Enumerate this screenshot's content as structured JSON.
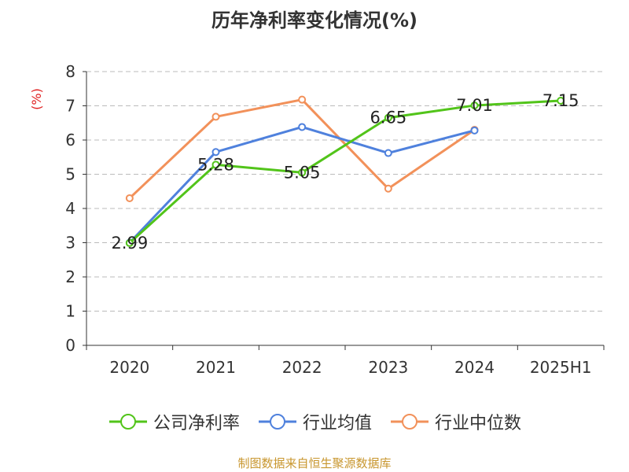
{
  "chart_data": {
    "type": "line",
    "title": "历年净利率变化情况(%)",
    "ylabel": "(%)",
    "xlabel": "",
    "categories": [
      "2020",
      "2021",
      "2022",
      "2023",
      "2024",
      "2025H1"
    ],
    "ylim": [
      0,
      8
    ],
    "yticks": [
      0,
      1,
      2,
      3,
      4,
      5,
      6,
      7,
      8
    ],
    "grid": true,
    "legend_position": "bottom",
    "series": [
      {
        "name": "公司净利率",
        "color": "#52c41a",
        "values": [
          2.99,
          5.28,
          5.05,
          6.65,
          7.01,
          7.15
        ],
        "labels": [
          "2.99",
          "5.28",
          "5.05",
          "6.65",
          "7.01",
          "7.15"
        ]
      },
      {
        "name": "行业均值",
        "color": "#4f81dd",
        "values": [
          3.0,
          5.65,
          6.38,
          5.62,
          6.28,
          null
        ]
      },
      {
        "name": "行业中位数",
        "color": "#f2915a",
        "values": [
          4.3,
          6.68,
          7.18,
          4.58,
          6.3,
          null
        ]
      }
    ],
    "source": "制图数据来自恒生聚源数据库",
    "source_color": "#c8962e",
    "ylabel_color": "#e02020"
  }
}
